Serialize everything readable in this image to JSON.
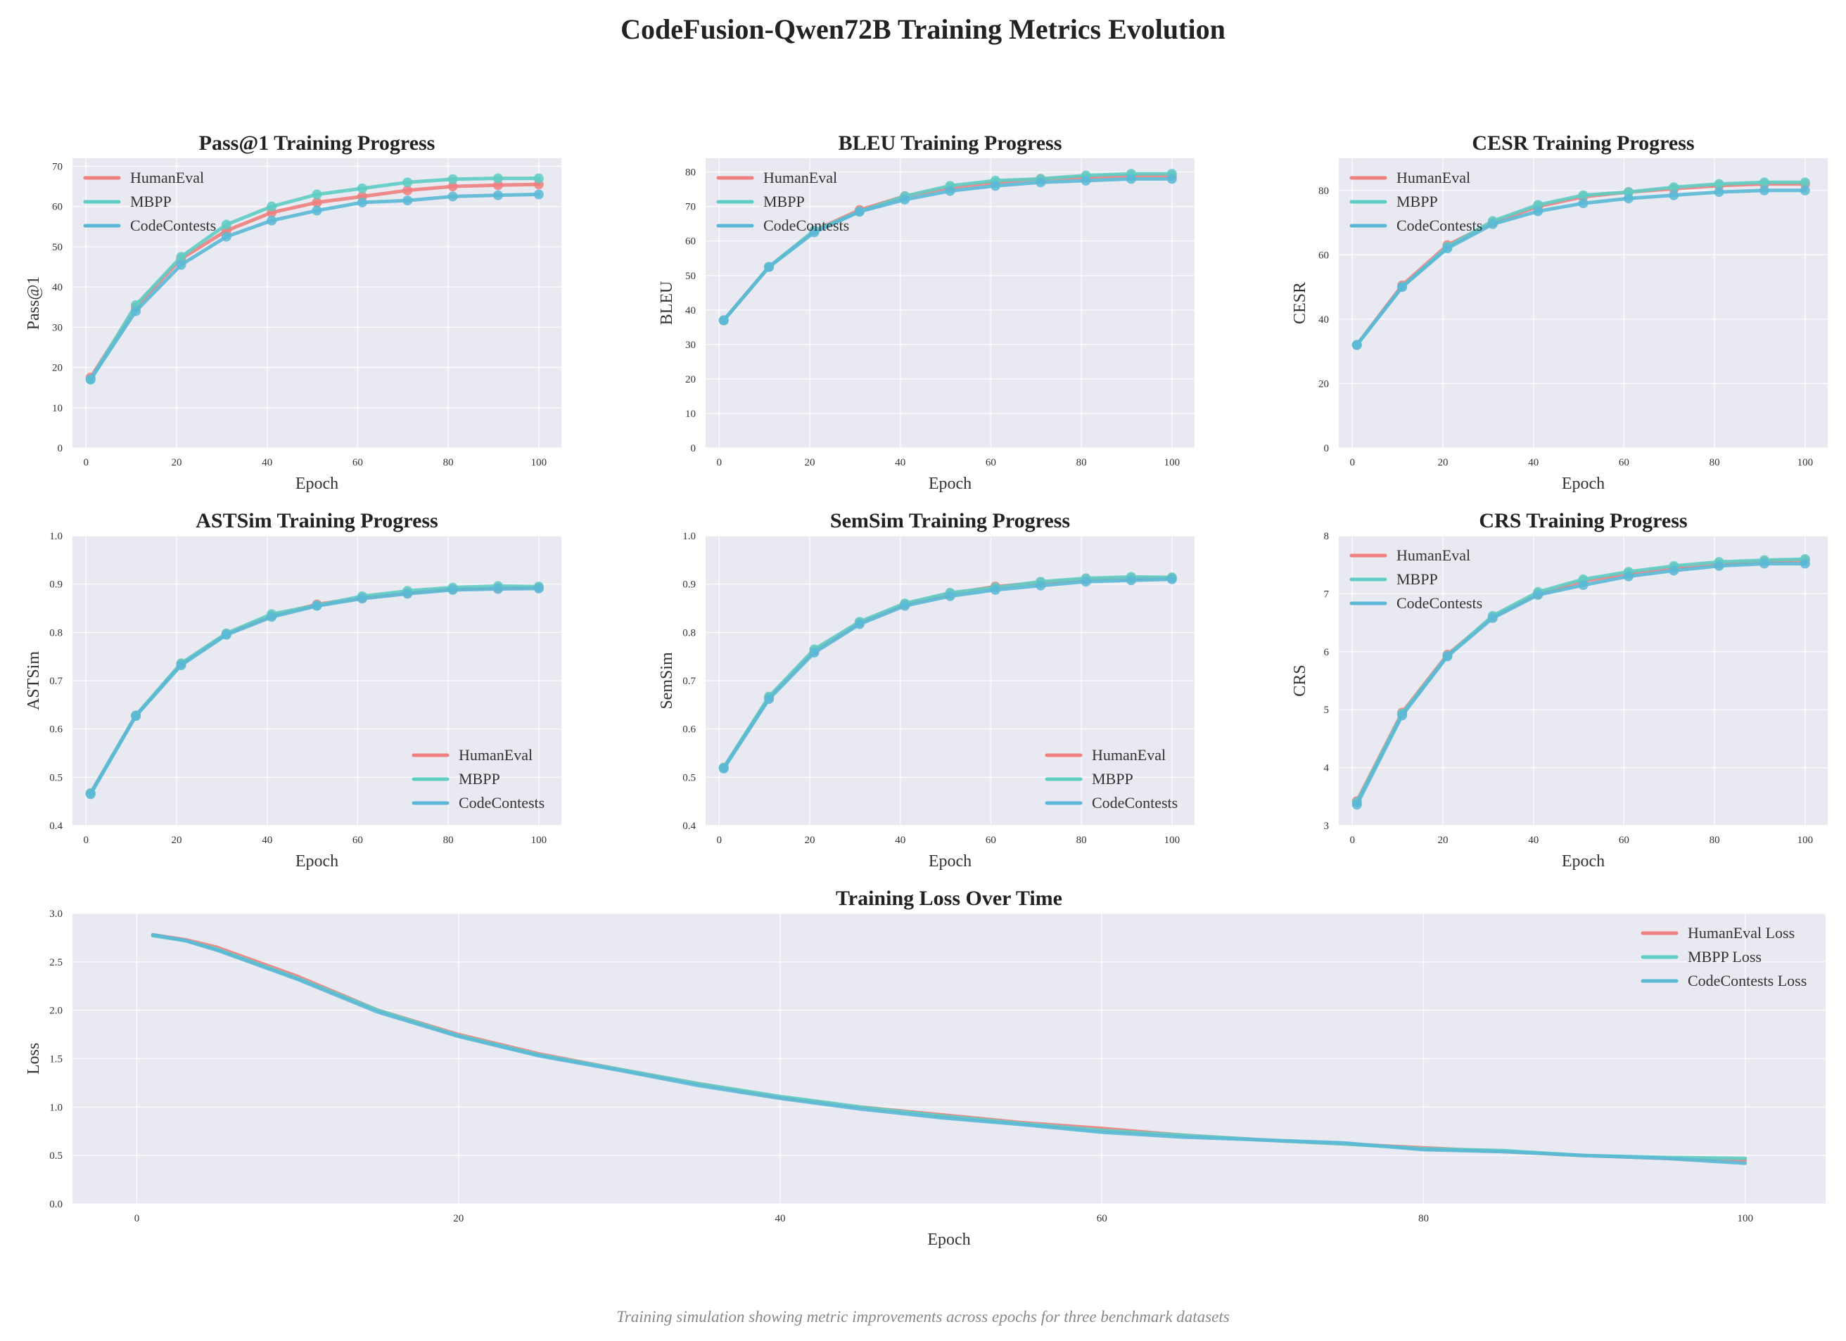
{
  "title": "CodeFusion-Qwen72B Training Metrics Evolution",
  "caption": "Training simulation showing metric improvements across epochs for three benchmark datasets",
  "colors": {
    "HumanEval": "#f07f7f",
    "MBPP": "#5ecdc4",
    "CodeContests": "#5ab8d6",
    "plot_bg": "#e9e9f1",
    "grid": "#ffffff"
  },
  "chart_data": [
    {
      "id": "pass1",
      "type": "line",
      "title": "Pass@1 Training Progress",
      "xlabel": "Epoch",
      "ylabel": "Pass@1",
      "xlim": [
        -3,
        105
      ],
      "ylim": [
        0,
        72
      ],
      "xticks": [
        0,
        20,
        40,
        60,
        80,
        100
      ],
      "yticks": [
        0,
        10,
        20,
        30,
        40,
        50,
        60,
        70
      ],
      "legend": "upper-left",
      "markers": true,
      "x": [
        1,
        11,
        21,
        31,
        41,
        51,
        61,
        71,
        81,
        91,
        100
      ],
      "series": [
        {
          "name": "HumanEval",
          "values": [
            17.5,
            35,
            47,
            54,
            58.5,
            61,
            62.5,
            64,
            65,
            65.3,
            65.5
          ]
        },
        {
          "name": "MBPP",
          "values": [
            17,
            35.5,
            47.5,
            55.5,
            60,
            63,
            64.5,
            66,
            66.8,
            67,
            67
          ]
        },
        {
          "name": "CodeContests",
          "values": [
            17,
            34,
            45.5,
            52.5,
            56.5,
            59,
            61,
            61.5,
            62.5,
            62.8,
            63
          ]
        }
      ]
    },
    {
      "id": "bleu",
      "type": "line",
      "title": "BLEU Training Progress",
      "xlabel": "Epoch",
      "ylabel": "BLEU",
      "xlim": [
        -3,
        105
      ],
      "ylim": [
        0,
        84
      ],
      "xticks": [
        0,
        20,
        40,
        60,
        80,
        100
      ],
      "yticks": [
        0,
        10,
        20,
        30,
        40,
        50,
        60,
        70,
        80
      ],
      "legend": "upper-left",
      "markers": true,
      "x": [
        1,
        11,
        21,
        31,
        41,
        51,
        61,
        71,
        81,
        91,
        100
      ],
      "series": [
        {
          "name": "HumanEval",
          "values": [
            37,
            52.5,
            63,
            69,
            73,
            75.5,
            77,
            78,
            78.5,
            79,
            79
          ]
        },
        {
          "name": "MBPP",
          "values": [
            37,
            52.5,
            63,
            68.5,
            73,
            76,
            77.5,
            78,
            79,
            79.5,
            79.5
          ]
        },
        {
          "name": "CodeContests",
          "values": [
            37,
            52.5,
            62.5,
            68.5,
            72,
            74.5,
            76,
            77,
            77.5,
            78,
            78
          ]
        }
      ]
    },
    {
      "id": "cesr",
      "type": "line",
      "title": "CESR Training Progress",
      "xlabel": "Epoch",
      "ylabel": "CESR",
      "xlim": [
        -3,
        105
      ],
      "ylim": [
        0,
        90
      ],
      "xticks": [
        0,
        20,
        40,
        60,
        80,
        100
      ],
      "yticks": [
        0,
        20,
        40,
        60,
        80
      ],
      "legend": "upper-left",
      "markers": true,
      "x": [
        1,
        11,
        21,
        31,
        41,
        51,
        61,
        71,
        81,
        91,
        100
      ],
      "series": [
        {
          "name": "HumanEval",
          "values": [
            32,
            50.5,
            63,
            70,
            75,
            78,
            79.5,
            80.5,
            81.5,
            82,
            82
          ]
        },
        {
          "name": "MBPP",
          "values": [
            32,
            50,
            62.5,
            70.5,
            75.5,
            78.5,
            79.5,
            81,
            82,
            82.5,
            82.5
          ]
        },
        {
          "name": "CodeContests",
          "values": [
            32,
            50,
            62,
            69.5,
            73.5,
            76,
            77.5,
            78.5,
            79.5,
            80,
            80
          ]
        }
      ]
    },
    {
      "id": "astsim",
      "type": "line",
      "title": "ASTSim Training Progress",
      "xlabel": "Epoch",
      "ylabel": "ASTSim",
      "xlim": [
        -3,
        105
      ],
      "ylim": [
        0.4,
        1.0
      ],
      "xticks": [
        0,
        20,
        40,
        60,
        80,
        100
      ],
      "yticks": [
        0.4,
        0.5,
        0.6,
        0.7,
        0.8,
        0.9,
        1.0
      ],
      "legend": "lower-right",
      "markers": true,
      "x": [
        1,
        11,
        21,
        31,
        41,
        51,
        61,
        71,
        81,
        91,
        100
      ],
      "series": [
        {
          "name": "HumanEval",
          "values": [
            0.467,
            0.628,
            0.735,
            0.797,
            0.835,
            0.858,
            0.872,
            0.882,
            0.89,
            0.892,
            0.893
          ]
        },
        {
          "name": "MBPP",
          "values": [
            0.467,
            0.628,
            0.736,
            0.798,
            0.838,
            0.856,
            0.875,
            0.886,
            0.893,
            0.896,
            0.895
          ]
        },
        {
          "name": "CodeContests",
          "values": [
            0.465,
            0.627,
            0.732,
            0.795,
            0.832,
            0.855,
            0.87,
            0.88,
            0.888,
            0.89,
            0.891
          ]
        }
      ]
    },
    {
      "id": "semsim",
      "type": "line",
      "title": "SemSim Training Progress",
      "xlabel": "Epoch",
      "ylabel": "SemSim",
      "xlim": [
        -3,
        105
      ],
      "ylim": [
        0.4,
        1.0
      ],
      "xticks": [
        0,
        20,
        40,
        60,
        80,
        100
      ],
      "yticks": [
        0.4,
        0.5,
        0.6,
        0.7,
        0.8,
        0.9,
        1.0
      ],
      "legend": "lower-right",
      "markers": true,
      "x": [
        1,
        11,
        21,
        31,
        41,
        51,
        61,
        71,
        81,
        91,
        100
      ],
      "series": [
        {
          "name": "HumanEval",
          "values": [
            0.52,
            0.665,
            0.762,
            0.82,
            0.858,
            0.88,
            0.895,
            0.903,
            0.91,
            0.912,
            0.913
          ]
        },
        {
          "name": "MBPP",
          "values": [
            0.52,
            0.667,
            0.765,
            0.822,
            0.86,
            0.882,
            0.893,
            0.905,
            0.912,
            0.915,
            0.914
          ]
        },
        {
          "name": "CodeContests",
          "values": [
            0.518,
            0.662,
            0.758,
            0.817,
            0.855,
            0.875,
            0.888,
            0.897,
            0.905,
            0.908,
            0.91
          ]
        }
      ]
    },
    {
      "id": "crs",
      "type": "line",
      "title": "CRS Training Progress",
      "xlabel": "Epoch",
      "ylabel": "CRS",
      "xlim": [
        -3,
        105
      ],
      "ylim": [
        3,
        8
      ],
      "xticks": [
        0,
        20,
        40,
        60,
        80,
        100
      ],
      "yticks": [
        3,
        4,
        5,
        6,
        7,
        8
      ],
      "legend": "upper-left",
      "markers": true,
      "x": [
        1,
        11,
        21,
        31,
        41,
        51,
        61,
        71,
        81,
        91,
        100
      ],
      "series": [
        {
          "name": "HumanEval",
          "values": [
            3.42,
            4.95,
            5.95,
            6.6,
            7.0,
            7.22,
            7.35,
            7.45,
            7.52,
            7.56,
            7.58
          ]
        },
        {
          "name": "MBPP",
          "values": [
            3.4,
            4.93,
            5.93,
            6.62,
            7.03,
            7.25,
            7.38,
            7.48,
            7.55,
            7.58,
            7.6
          ]
        },
        {
          "name": "CodeContests",
          "values": [
            3.36,
            4.9,
            5.92,
            6.58,
            6.98,
            7.15,
            7.3,
            7.4,
            7.48,
            7.52,
            7.52
          ]
        }
      ]
    },
    {
      "id": "loss",
      "type": "line",
      "title": "Training Loss Over Time",
      "xlabel": "Epoch",
      "ylabel": "Loss",
      "xlim": [
        -4,
        105
      ],
      "ylim": [
        0,
        3.0
      ],
      "xticks": [
        0,
        20,
        40,
        60,
        80,
        100
      ],
      "yticks": [
        0.0,
        0.5,
        1.0,
        1.5,
        2.0,
        2.5,
        3.0
      ],
      "legend": "upper-right",
      "markers": false,
      "x": [
        1,
        3,
        5,
        10,
        15,
        20,
        25,
        30,
        35,
        40,
        45,
        50,
        55,
        60,
        65,
        70,
        75,
        80,
        85,
        90,
        95,
        100
      ],
      "series": [
        {
          "name": "HumanEval Loss",
          "values": [
            2.78,
            2.73,
            2.65,
            2.35,
            2.0,
            1.75,
            1.55,
            1.39,
            1.24,
            1.1,
            1.0,
            0.92,
            0.84,
            0.78,
            0.71,
            0.66,
            0.62,
            0.58,
            0.54,
            0.5,
            0.47,
            0.45
          ]
        },
        {
          "name": "MBPP Loss",
          "values": [
            2.77,
            2.72,
            2.63,
            2.33,
            2.0,
            1.74,
            1.54,
            1.39,
            1.24,
            1.11,
            1.0,
            0.91,
            0.83,
            0.76,
            0.71,
            0.66,
            0.62,
            0.57,
            0.55,
            0.5,
            0.48,
            0.47
          ]
        },
        {
          "name": "CodeContests Loss",
          "values": [
            2.78,
            2.72,
            2.62,
            2.32,
            1.98,
            1.73,
            1.53,
            1.38,
            1.22,
            1.09,
            0.98,
            0.89,
            0.82,
            0.74,
            0.69,
            0.66,
            0.63,
            0.56,
            0.54,
            0.5,
            0.47,
            0.42
          ]
        }
      ]
    }
  ]
}
